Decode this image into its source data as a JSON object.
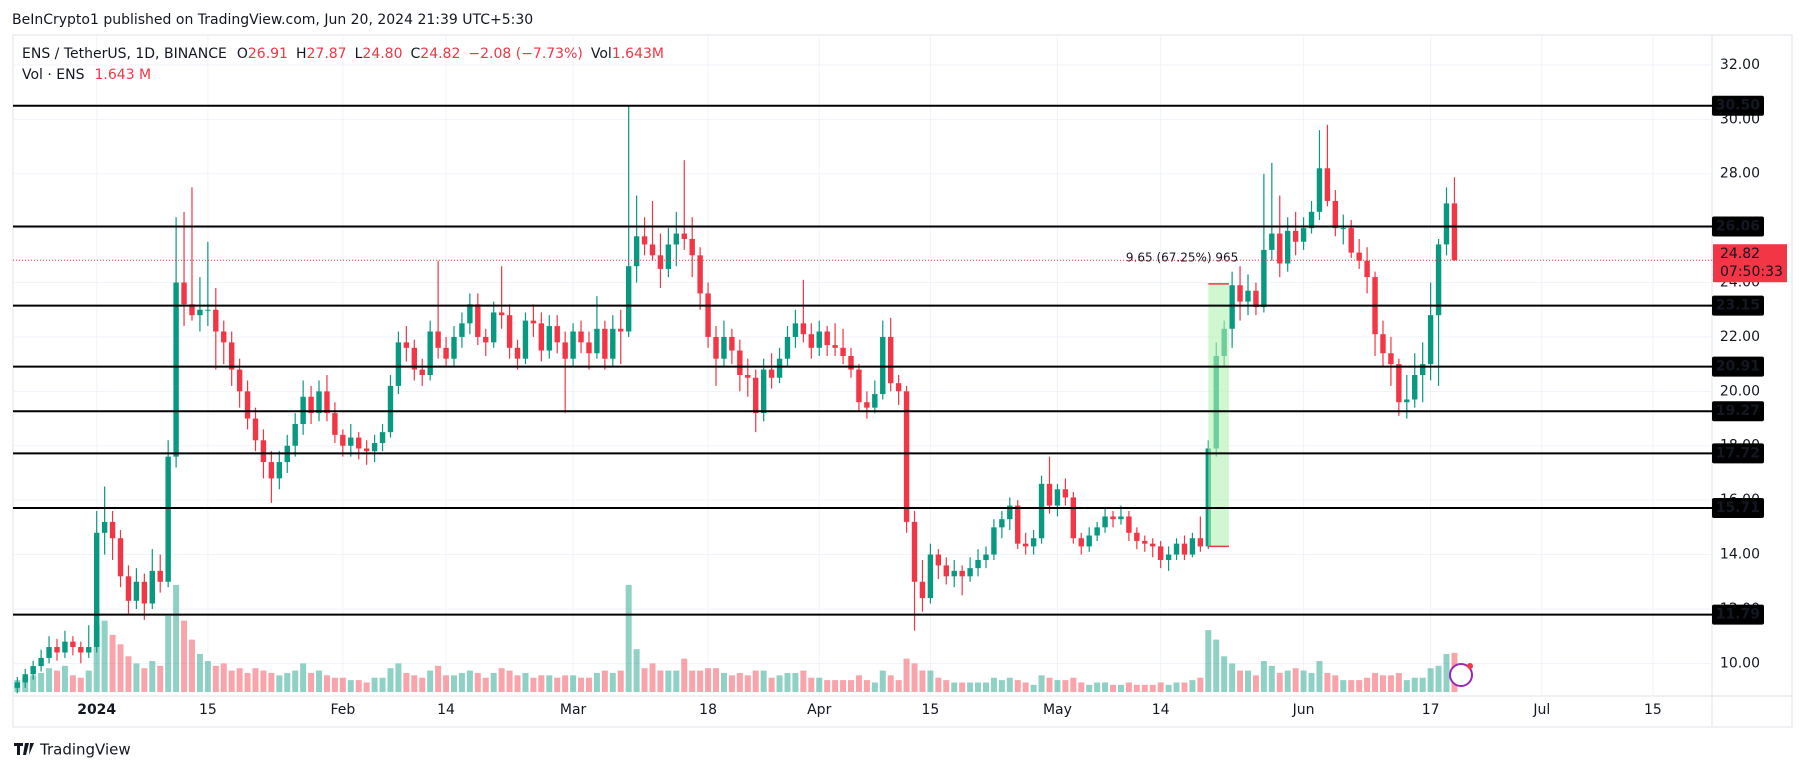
{
  "header": {
    "published": "BeInCrypto1 published on TradingView.com, Jun 20, 2024 21:39 UTC+5:30",
    "footer": "TradingView"
  },
  "legend": {
    "symbol": "ENS / TetherUS, 1D, BINANCE",
    "items": [
      {
        "label": "O",
        "value": "26.91"
      },
      {
        "label": "H",
        "value": "27.87"
      },
      {
        "label": "L",
        "value": "24.80"
      },
      {
        "label": "C",
        "value": "24.82"
      }
    ],
    "change": "−2.08 (−7.73%)",
    "vol_label": "Vol",
    "vol_value": "1.643M",
    "vol_line_label": "Vol · ENS",
    "vol_line_value": "1.643 M"
  },
  "chart_data": {
    "type": "candlestick",
    "up_color": "#089981",
    "down_color": "#f23645",
    "ylim": [
      8.8,
      33.1
    ],
    "yticks": [
      {
        "value": 32,
        "label": "32.00"
      },
      {
        "value": 30,
        "label": "30.00"
      },
      {
        "value": 28,
        "label": "28.00"
      },
      {
        "value": 26,
        "label": "26.00"
      },
      {
        "value": 24,
        "label": "24.00"
      },
      {
        "value": 22,
        "label": "22.00"
      },
      {
        "value": 20,
        "label": "20.00"
      },
      {
        "value": 18,
        "label": "18.00"
      },
      {
        "value": 16,
        "label": "16.00"
      },
      {
        "value": 14,
        "label": "14.00"
      },
      {
        "value": 12,
        "label": "12.00"
      },
      {
        "value": 10,
        "label": "10.00"
      }
    ],
    "xticks": [
      {
        "value": 10,
        "label": "2024"
      },
      {
        "value": 24,
        "label": "15"
      },
      {
        "value": 41,
        "label": "Feb"
      },
      {
        "value": 54,
        "label": "14"
      },
      {
        "value": 70,
        "label": "Mar"
      },
      {
        "value": 87,
        "label": "18"
      },
      {
        "value": 101,
        "label": "Apr"
      },
      {
        "value": 115,
        "label": "15"
      },
      {
        "value": 131,
        "label": "May"
      },
      {
        "value": 144,
        "label": "14"
      },
      {
        "value": 162,
        "label": "Jun"
      },
      {
        "value": 178,
        "label": "17"
      },
      {
        "value": 192,
        "label": "Jul"
      },
      {
        "value": 206,
        "label": "15"
      }
    ],
    "grid": true,
    "levels": [
      {
        "value": 30.5,
        "label": "30.50"
      },
      {
        "value": 26.06,
        "label": "26.06"
      },
      {
        "value": 23.15,
        "label": "23.15"
      },
      {
        "value": 20.91,
        "label": "20.91"
      },
      {
        "value": 19.27,
        "label": "19.27"
      },
      {
        "value": 17.72,
        "label": "17.72"
      },
      {
        "value": 15.71,
        "label": "15.71"
      },
      {
        "value": 11.79,
        "label": "11.79"
      }
    ],
    "last_price": {
      "value": 24.82,
      "label": "24.82",
      "countdown": "07:50:33"
    },
    "measure": {
      "from": 14.3,
      "to": 23.95,
      "label": "9.65 (67.25%) 965"
    },
    "ohlc": [
      [
        9.1,
        9.5,
        8.9,
        9.3
      ],
      [
        9.3,
        9.8,
        9.1,
        9.6
      ],
      [
        9.6,
        10.1,
        9.4,
        9.9
      ],
      [
        9.9,
        10.5,
        9.7,
        10.2
      ],
      [
        10.2,
        11.0,
        10.0,
        10.6
      ],
      [
        10.6,
        10.9,
        10.1,
        10.4
      ],
      [
        10.4,
        11.2,
        10.2,
        10.8
      ],
      [
        10.8,
        11.0,
        10.3,
        10.6
      ],
      [
        10.6,
        10.8,
        10.0,
        10.4
      ],
      [
        10.4,
        11.4,
        10.2,
        10.6
      ],
      [
        10.6,
        15.6,
        10.4,
        14.8
      ],
      [
        14.8,
        16.5,
        14.0,
        15.2
      ],
      [
        15.2,
        15.6,
        13.8,
        14.6
      ],
      [
        14.6,
        14.9,
        12.8,
        13.2
      ],
      [
        13.2,
        13.6,
        11.8,
        12.3
      ],
      [
        12.3,
        13.5,
        12.0,
        13.0
      ],
      [
        13.0,
        13.3,
        11.6,
        12.2
      ],
      [
        12.2,
        14.2,
        12.0,
        13.4
      ],
      [
        13.4,
        14.0,
        12.6,
        13.0
      ],
      [
        13.0,
        18.2,
        12.8,
        17.6
      ],
      [
        17.6,
        26.4,
        17.2,
        24.0
      ],
      [
        24.0,
        26.6,
        22.4,
        23.2
      ],
      [
        23.2,
        27.5,
        22.6,
        22.8
      ],
      [
        22.8,
        24.2,
        22.2,
        23.0
      ],
      [
        23.0,
        25.5,
        22.4,
        23.0
      ],
      [
        23.0,
        23.8,
        20.8,
        22.2
      ],
      [
        22.2,
        22.6,
        21.0,
        21.8
      ],
      [
        21.8,
        22.2,
        20.2,
        20.8
      ],
      [
        20.8,
        21.2,
        19.4,
        20.0
      ],
      [
        20.0,
        20.4,
        18.6,
        19.0
      ],
      [
        19.0,
        19.4,
        17.8,
        18.2
      ],
      [
        18.2,
        18.6,
        16.8,
        17.4
      ],
      [
        17.4,
        17.8,
        15.9,
        16.8
      ],
      [
        16.8,
        17.8,
        16.4,
        17.4
      ],
      [
        17.4,
        18.4,
        17.0,
        18.0
      ],
      [
        18.0,
        19.2,
        17.6,
        18.8
      ],
      [
        18.8,
        20.4,
        18.4,
        19.8
      ],
      [
        19.8,
        20.2,
        18.8,
        19.2
      ],
      [
        19.2,
        20.4,
        18.9,
        20.0
      ],
      [
        20.0,
        20.6,
        18.9,
        19.2
      ],
      [
        19.2,
        19.6,
        18.1,
        18.4
      ],
      [
        18.4,
        18.6,
        17.6,
        18.0
      ],
      [
        18.0,
        18.8,
        17.6,
        18.3
      ],
      [
        18.3,
        18.5,
        17.5,
        17.9
      ],
      [
        17.9,
        18.2,
        17.3,
        17.8
      ],
      [
        17.8,
        18.4,
        17.4,
        18.1
      ],
      [
        18.1,
        18.8,
        17.8,
        18.5
      ],
      [
        18.5,
        20.6,
        18.3,
        20.2
      ],
      [
        20.2,
        22.2,
        19.9,
        21.8
      ],
      [
        21.8,
        22.4,
        21.1,
        21.6
      ],
      [
        21.6,
        21.9,
        20.4,
        20.8
      ],
      [
        20.8,
        21.2,
        20.2,
        20.6
      ],
      [
        20.6,
        22.6,
        20.4,
        22.2
      ],
      [
        22.2,
        24.8,
        21.2,
        21.6
      ],
      [
        21.6,
        22.0,
        20.9,
        21.2
      ],
      [
        21.2,
        22.4,
        20.9,
        22.0
      ],
      [
        22.0,
        22.9,
        21.6,
        22.5
      ],
      [
        22.5,
        23.6,
        22.1,
        23.2
      ],
      [
        23.2,
        23.6,
        21.7,
        22.0
      ],
      [
        22.0,
        22.3,
        21.3,
        21.8
      ],
      [
        21.8,
        23.3,
        21.6,
        22.9
      ],
      [
        22.9,
        24.6,
        22.3,
        22.8
      ],
      [
        22.8,
        23.2,
        21.2,
        21.6
      ],
      [
        21.6,
        21.9,
        20.8,
        21.2
      ],
      [
        21.2,
        22.9,
        21.0,
        22.6
      ],
      [
        22.6,
        23.2,
        22.0,
        22.5
      ],
      [
        22.5,
        22.9,
        21.1,
        21.5
      ],
      [
        21.5,
        22.8,
        21.2,
        22.4
      ],
      [
        22.4,
        22.8,
        21.4,
        21.8
      ],
      [
        21.8,
        22.2,
        19.2,
        21.2
      ],
      [
        21.2,
        22.5,
        20.9,
        22.2
      ],
      [
        22.2,
        22.6,
        21.4,
        21.8
      ],
      [
        21.8,
        22.2,
        20.8,
        21.4
      ],
      [
        21.4,
        23.5,
        21.2,
        22.3
      ],
      [
        22.3,
        22.6,
        20.8,
        21.2
      ],
      [
        21.2,
        22.8,
        20.9,
        22.3
      ],
      [
        22.3,
        23.0,
        21.0,
        22.2
      ],
      [
        22.2,
        30.5,
        22.0,
        24.6
      ],
      [
        24.6,
        27.2,
        24.0,
        25.7
      ],
      [
        25.7,
        26.4,
        25.0,
        25.4
      ],
      [
        25.4,
        27.0,
        24.8,
        25.0
      ],
      [
        25.0,
        25.8,
        23.8,
        24.5
      ],
      [
        24.5,
        26.0,
        24.2,
        25.4
      ],
      [
        25.4,
        26.6,
        24.6,
        25.8
      ],
      [
        25.8,
        28.5,
        25.2,
        25.6
      ],
      [
        25.6,
        26.4,
        24.2,
        25.0
      ],
      [
        25.0,
        25.3,
        23.0,
        23.6
      ],
      [
        23.6,
        24.0,
        21.6,
        22.0
      ],
      [
        22.0,
        22.4,
        20.2,
        21.2
      ],
      [
        21.2,
        22.6,
        20.9,
        22.0
      ],
      [
        22.0,
        22.3,
        21.0,
        21.5
      ],
      [
        21.5,
        21.9,
        20.0,
        20.6
      ],
      [
        20.6,
        21.2,
        19.8,
        20.5
      ],
      [
        20.5,
        20.8,
        18.5,
        19.2
      ],
      [
        19.2,
        21.2,
        18.9,
        20.8
      ],
      [
        20.8,
        21.4,
        20.1,
        20.5
      ],
      [
        20.5,
        21.6,
        20.3,
        21.2
      ],
      [
        21.2,
        22.4,
        20.9,
        22.0
      ],
      [
        22.0,
        23.0,
        21.6,
        22.5
      ],
      [
        22.5,
        24.1,
        21.8,
        22.1
      ],
      [
        22.1,
        22.5,
        21.2,
        21.6
      ],
      [
        21.6,
        22.6,
        21.3,
        22.2
      ],
      [
        22.2,
        22.4,
        21.3,
        21.7
      ],
      [
        21.7,
        22.5,
        21.3,
        21.6
      ],
      [
        21.6,
        22.3,
        21.0,
        21.3
      ],
      [
        21.3,
        21.6,
        20.5,
        20.8
      ],
      [
        20.8,
        21.0,
        19.3,
        19.6
      ],
      [
        19.6,
        20.0,
        19.0,
        19.4
      ],
      [
        19.4,
        20.4,
        19.2,
        19.9
      ],
      [
        19.9,
        22.6,
        19.7,
        22.0
      ],
      [
        22.0,
        22.7,
        20.0,
        20.3
      ],
      [
        20.3,
        20.6,
        19.5,
        20.0
      ],
      [
        20.0,
        20.2,
        14.8,
        15.2
      ],
      [
        15.2,
        15.6,
        11.2,
        13.0
      ],
      [
        13.0,
        13.8,
        11.9,
        12.4
      ],
      [
        12.4,
        14.4,
        12.2,
        14.0
      ],
      [
        14.0,
        14.2,
        13.1,
        13.6
      ],
      [
        13.6,
        13.9,
        12.9,
        13.2
      ],
      [
        13.2,
        13.8,
        12.8,
        13.4
      ],
      [
        13.4,
        13.6,
        12.5,
        13.2
      ],
      [
        13.2,
        13.9,
        13.0,
        13.5
      ],
      [
        13.5,
        14.2,
        13.2,
        13.8
      ],
      [
        13.8,
        14.3,
        13.5,
        14.0
      ],
      [
        14.0,
        15.3,
        13.8,
        15.0
      ],
      [
        15.0,
        15.6,
        14.6,
        15.3
      ],
      [
        15.3,
        16.1,
        14.9,
        15.8
      ],
      [
        15.8,
        16.0,
        14.2,
        14.4
      ],
      [
        14.4,
        14.8,
        14.0,
        14.3
      ],
      [
        14.3,
        14.9,
        14.0,
        14.6
      ],
      [
        14.6,
        16.9,
        14.4,
        16.6
      ],
      [
        16.6,
        17.6,
        15.5,
        15.8
      ],
      [
        15.8,
        16.6,
        15.4,
        16.4
      ],
      [
        16.4,
        16.8,
        15.8,
        16.1
      ],
      [
        16.1,
        16.3,
        14.4,
        14.6
      ],
      [
        14.6,
        14.8,
        14.0,
        14.3
      ],
      [
        14.3,
        15.0,
        14.1,
        14.7
      ],
      [
        14.7,
        15.2,
        14.5,
        15.0
      ],
      [
        15.0,
        15.7,
        14.8,
        15.4
      ],
      [
        15.4,
        15.6,
        15.0,
        15.3
      ],
      [
        15.3,
        15.8,
        15.1,
        15.4
      ],
      [
        15.4,
        15.6,
        14.5,
        14.8
      ],
      [
        14.8,
        15.0,
        14.2,
        14.5
      ],
      [
        14.5,
        14.7,
        14.1,
        14.4
      ],
      [
        14.4,
        14.6,
        13.9,
        14.3
      ],
      [
        14.3,
        14.5,
        13.5,
        13.8
      ],
      [
        13.8,
        14.3,
        13.4,
        14.0
      ],
      [
        14.0,
        14.6,
        13.8,
        14.4
      ],
      [
        14.4,
        14.7,
        13.8,
        14.0
      ],
      [
        14.0,
        14.8,
        13.9,
        14.6
      ],
      [
        14.6,
        15.4,
        14.1,
        14.3
      ],
      [
        14.3,
        18.2,
        14.2,
        17.9
      ],
      [
        17.9,
        21.8,
        17.6,
        21.3
      ],
      [
        21.3,
        22.6,
        20.9,
        22.3
      ],
      [
        22.3,
        24.4,
        21.6,
        23.9
      ],
      [
        23.9,
        24.6,
        22.6,
        23.3
      ],
      [
        23.3,
        24.3,
        22.8,
        23.7
      ],
      [
        23.7,
        24.0,
        22.8,
        23.1
      ],
      [
        23.1,
        28.0,
        22.9,
        25.2
      ],
      [
        25.2,
        28.4,
        24.8,
        25.8
      ],
      [
        25.8,
        27.2,
        24.2,
        24.7
      ],
      [
        24.7,
        26.4,
        24.4,
        25.9
      ],
      [
        25.9,
        26.6,
        25.0,
        25.5
      ],
      [
        25.5,
        26.4,
        25.2,
        26.0
      ],
      [
        26.0,
        27.0,
        25.8,
        26.6
      ],
      [
        26.6,
        29.6,
        26.3,
        28.2
      ],
      [
        28.2,
        29.8,
        26.8,
        27.0
      ],
      [
        27.0,
        27.4,
        25.7,
        26.0
      ],
      [
        26.0,
        26.5,
        25.4,
        26.0
      ],
      [
        26.0,
        26.3,
        24.9,
        25.1
      ],
      [
        25.1,
        25.6,
        24.5,
        24.8
      ],
      [
        24.8,
        25.3,
        23.6,
        24.2
      ],
      [
        24.2,
        24.4,
        21.3,
        22.1
      ],
      [
        22.1,
        22.6,
        20.9,
        21.4
      ],
      [
        21.4,
        22.0,
        20.2,
        21.0
      ],
      [
        21.0,
        21.2,
        19.1,
        19.6
      ],
      [
        19.6,
        20.6,
        19.0,
        19.7
      ],
      [
        19.7,
        21.4,
        19.4,
        20.6
      ],
      [
        20.6,
        21.8,
        19.6,
        21.0
      ],
      [
        21.0,
        24.0,
        20.4,
        22.8
      ],
      [
        22.8,
        25.6,
        20.2,
        25.4
      ],
      [
        25.4,
        27.5,
        25.0,
        26.91
      ],
      [
        26.91,
        27.87,
        24.8,
        24.82
      ]
    ],
    "volume": [
      0.5,
      0.6,
      0.7,
      0.8,
      1.0,
      0.9,
      1.1,
      0.7,
      0.6,
      0.9,
      2.8,
      3.0,
      2.4,
      2.0,
      1.5,
      1.2,
      1.0,
      1.3,
      1.1,
      3.2,
      4.5,
      3.0,
      2.2,
      1.6,
      1.3,
      1.1,
      1.2,
      0.9,
      1.0,
      0.8,
      1.0,
      0.9,
      0.8,
      0.7,
      0.8,
      0.9,
      1.2,
      0.8,
      0.9,
      0.7,
      0.6,
      0.6,
      0.5,
      0.5,
      0.4,
      0.6,
      0.6,
      1.0,
      1.2,
      0.8,
      0.7,
      0.6,
      0.9,
      1.1,
      0.7,
      0.7,
      0.8,
      0.9,
      0.8,
      0.6,
      0.8,
      1.0,
      0.9,
      0.7,
      0.8,
      0.6,
      0.7,
      0.7,
      0.6,
      0.7,
      0.7,
      0.6,
      0.6,
      0.8,
      0.9,
      0.8,
      0.9,
      4.5,
      1.8,
      1.0,
      1.2,
      0.9,
      0.9,
      0.9,
      1.4,
      0.9,
      0.9,
      1.0,
      1.0,
      0.8,
      0.7,
      0.8,
      0.7,
      0.9,
      0.9,
      0.6,
      0.7,
      0.8,
      0.8,
      0.9,
      0.6,
      0.6,
      0.5,
      0.5,
      0.5,
      0.5,
      0.7,
      0.5,
      0.4,
      0.9,
      0.7,
      0.5,
      1.4,
      1.2,
      0.9,
      0.9,
      0.6,
      0.5,
      0.4,
      0.4,
      0.4,
      0.4,
      0.4,
      0.6,
      0.5,
      0.6,
      0.5,
      0.4,
      0.3,
      0.7,
      0.6,
      0.5,
      0.5,
      0.6,
      0.4,
      0.3,
      0.4,
      0.4,
      0.3,
      0.3,
      0.4,
      0.3,
      0.3,
      0.3,
      0.4,
      0.3,
      0.4,
      0.4,
      0.5,
      0.6,
      2.6,
      2.2,
      1.5,
      1.2,
      0.9,
      0.9,
      0.7,
      1.3,
      1.1,
      0.8,
      0.9,
      1.0,
      0.9,
      0.8,
      1.3,
      0.8,
      0.7,
      0.5,
      0.5,
      0.5,
      0.6,
      0.8,
      0.7,
      0.7,
      0.8,
      0.5,
      0.6,
      0.6,
      1.0,
      1.1,
      1.6,
      1.643
    ]
  }
}
